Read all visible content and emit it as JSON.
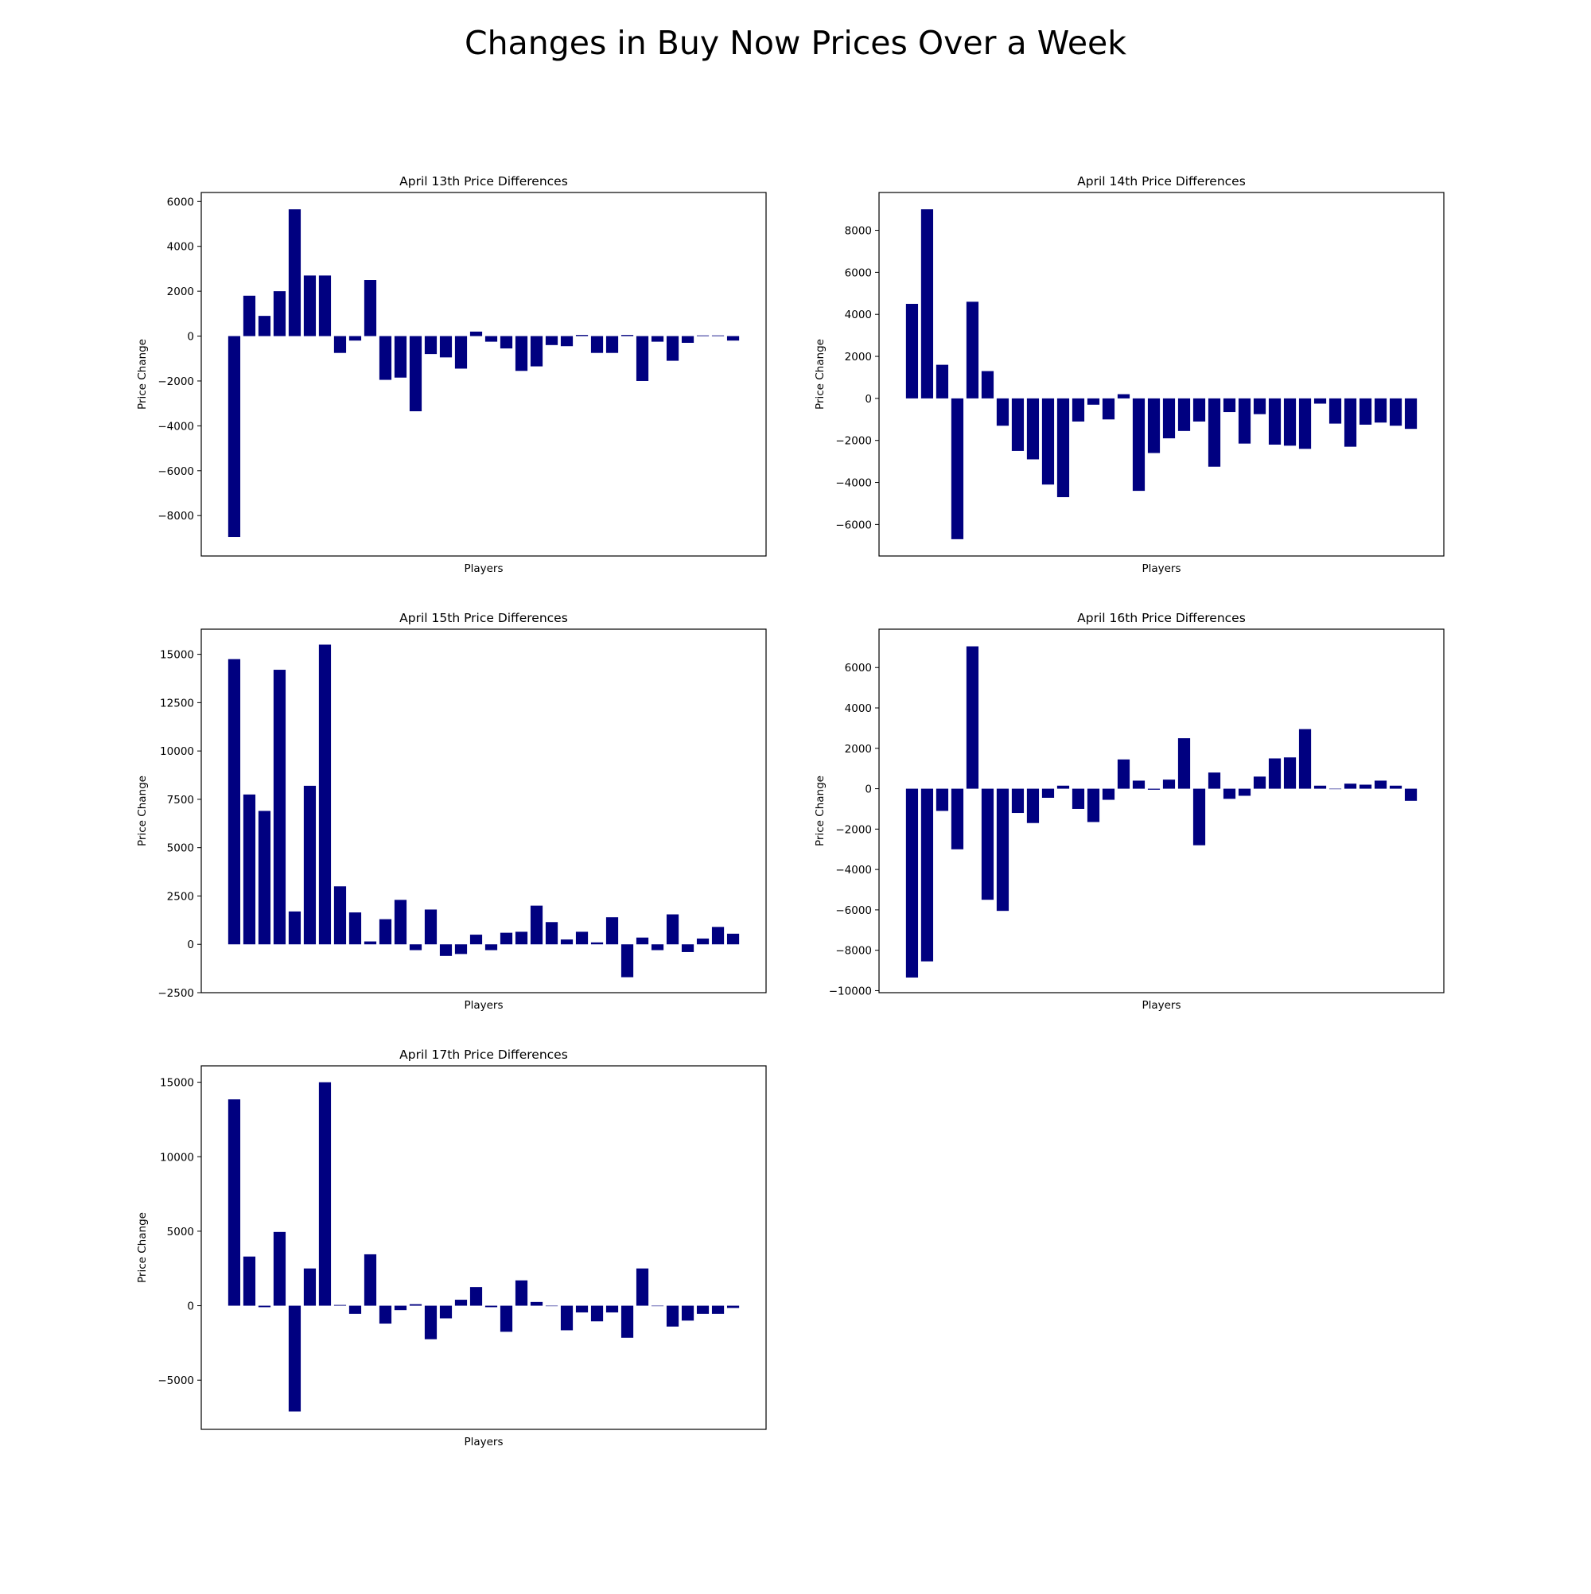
{
  "figure": {
    "suptitle": "Changes in Buy Now Prices Over a Week",
    "bar_color": "#000080"
  },
  "chart_data": [
    {
      "type": "bar",
      "title": "April 13th Price Differences",
      "xlabel": "Players",
      "ylabel": "Price Change",
      "ylim": [
        -9800,
        6400
      ],
      "yticks": [
        -8000,
        -6000,
        -4000,
        -2000,
        0,
        2000,
        4000,
        6000
      ],
      "ytick_labels": [
        "−8000",
        "−6000",
        "−4000",
        "−2000",
        "0",
        "2000",
        "4000",
        "6000"
      ],
      "values": [
        -8950,
        1800,
        900,
        2000,
        5650,
        2700,
        2700,
        -750,
        -200,
        2500,
        -1950,
        -1850,
        -3350,
        -800,
        -950,
        -1450,
        200,
        -250,
        -550,
        -1550,
        -1350,
        -400,
        -450,
        50,
        -750,
        -750,
        50,
        -2000,
        -250,
        -1100,
        -300,
        30,
        30,
        -200
      ]
    },
    {
      "type": "bar",
      "title": "April 14th Price Differences",
      "xlabel": "Players",
      "ylabel": "Price Change",
      "ylim": [
        -7500,
        9800
      ],
      "yticks": [
        -6000,
        -4000,
        -2000,
        0,
        2000,
        4000,
        6000,
        8000
      ],
      "ytick_labels": [
        "−6000",
        "−4000",
        "−2000",
        "0",
        "2000",
        "4000",
        "6000",
        "8000"
      ],
      "values": [
        4500,
        9000,
        1600,
        -6700,
        4600,
        1300,
        -1300,
        -2500,
        -2900,
        -4100,
        -4700,
        -1100,
        -300,
        -1000,
        200,
        -4400,
        -2600,
        -1900,
        -1550,
        -1100,
        -3250,
        -650,
        -2150,
        -750,
        -2200,
        -2250,
        -2400,
        -250,
        -1200,
        -2300,
        -1250,
        -1150,
        -1300,
        -1450
      ]
    },
    {
      "type": "bar",
      "title": "April 15th Price Differences",
      "xlabel": "Players",
      "ylabel": "Price Change",
      "ylim": [
        -2500,
        16300
      ],
      "yticks": [
        -2500,
        0,
        2500,
        5000,
        7500,
        10000,
        12500,
        15000
      ],
      "ytick_labels": [
        "−2500",
        "0",
        "2500",
        "5000",
        "7500",
        "10000",
        "12500",
        "15000"
      ],
      "values": [
        14750,
        7750,
        6900,
        14200,
        1700,
        8200,
        15500,
        3000,
        1650,
        150,
        1300,
        2300,
        -300,
        1800,
        -600,
        -500,
        500,
        -300,
        600,
        650,
        2000,
        1150,
        250,
        650,
        100,
        1400,
        -1700,
        350,
        -300,
        1550,
        -400,
        300,
        900,
        550
      ]
    },
    {
      "type": "bar",
      "title": "April 16th Price Differences",
      "xlabel": "Players",
      "ylabel": "Price Change",
      "ylim": [
        -10100,
        7900
      ],
      "yticks": [
        -10000,
        -8000,
        -6000,
        -4000,
        -2000,
        0,
        2000,
        4000,
        6000
      ],
      "ytick_labels": [
        "−10000",
        "−8000",
        "−6000",
        "−4000",
        "−2000",
        "0",
        "2000",
        "4000",
        "6000"
      ],
      "values": [
        -9350,
        -8550,
        -1100,
        -3000,
        7050,
        -5500,
        -6050,
        -1200,
        -1700,
        -450,
        150,
        -1000,
        -1650,
        -550,
        1450,
        400,
        -50,
        450,
        2500,
        -2800,
        800,
        -500,
        -350,
        600,
        1500,
        1550,
        2950,
        150,
        0,
        250,
        200,
        400,
        150,
        -600
      ]
    },
    {
      "type": "bar",
      "title": "April 17th Price Differences",
      "xlabel": "Players",
      "ylabel": "Price Change",
      "ylim": [
        -8300,
        16100
      ],
      "yticks": [
        -5000,
        0,
        5000,
        10000,
        15000
      ],
      "ytick_labels": [
        "−5000",
        "0",
        "5000",
        "10000",
        "15000"
      ],
      "values": [
        13850,
        3300,
        -100,
        4950,
        -7100,
        2500,
        15000,
        50,
        -550,
        3450,
        -1200,
        -300,
        100,
        -2250,
        -850,
        400,
        1250,
        -100,
        -1750,
        1700,
        250,
        0,
        -1650,
        -450,
        -1050,
        -450,
        -2150,
        2500,
        0,
        -1400,
        -1000,
        -550,
        -550,
        -150
      ]
    }
  ]
}
